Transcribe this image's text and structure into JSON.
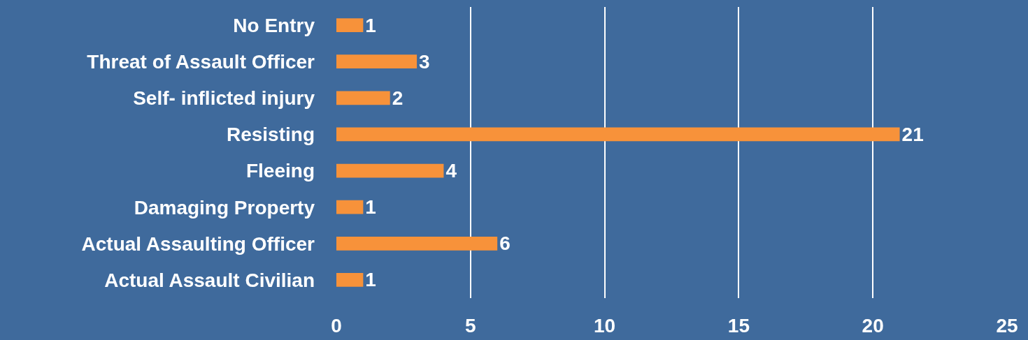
{
  "chart_data": {
    "type": "bar",
    "orientation": "horizontal",
    "categories": [
      "No Entry",
      "Threat of Assault Officer",
      "Self- inflicted injury",
      "Resisting",
      "Fleeing",
      "Damaging Property",
      "Actual Assaulting Officer",
      "Actual Assault Civilian"
    ],
    "values": [
      1,
      3,
      2,
      21,
      4,
      1,
      6,
      1
    ],
    "color": "#f7923a",
    "xlim": [
      0,
      25
    ],
    "xticks": [
      0,
      5,
      10,
      15,
      20,
      25
    ],
    "grid": "x",
    "data_labels": true
  }
}
